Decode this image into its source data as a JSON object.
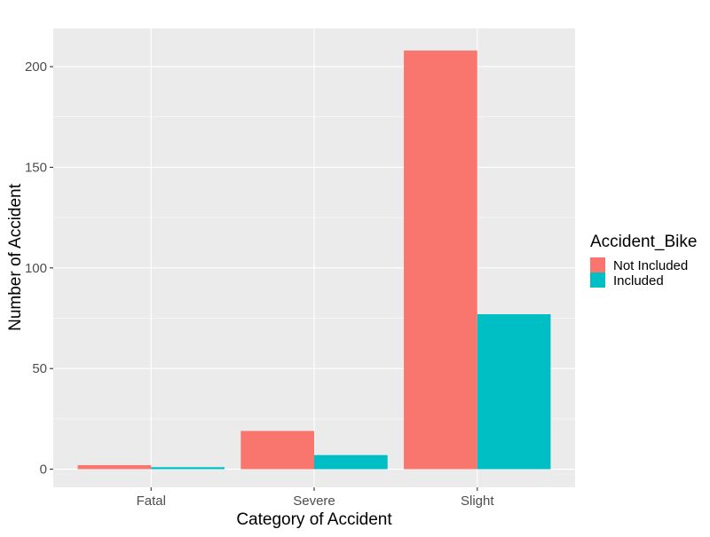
{
  "chart_data": {
    "type": "bar",
    "title": "",
    "xlabel": "Category of Accident",
    "ylabel": "Number of Accident",
    "categories": [
      "Fatal",
      "Severe",
      "Slight"
    ],
    "series": [
      {
        "name": "Not Included",
        "values": [
          2,
          19,
          208
        ],
        "color": "#F8766D"
      },
      {
        "name": "Included",
        "values": [
          1,
          7,
          77
        ],
        "color": "#00BFC4"
      }
    ],
    "ylim": [
      -9,
      219
    ],
    "yticks": [
      0,
      50,
      100,
      150,
      200
    ],
    "ytick_labels": [
      "0",
      "50",
      "100",
      "150",
      "200"
    ],
    "grid": true,
    "legend": {
      "title": "Accident_Bike",
      "placement": "right"
    },
    "panel_background": "#EBEBEB",
    "grid_color": "#FFFFFF",
    "axis_text_color": "#4D4D4D"
  }
}
